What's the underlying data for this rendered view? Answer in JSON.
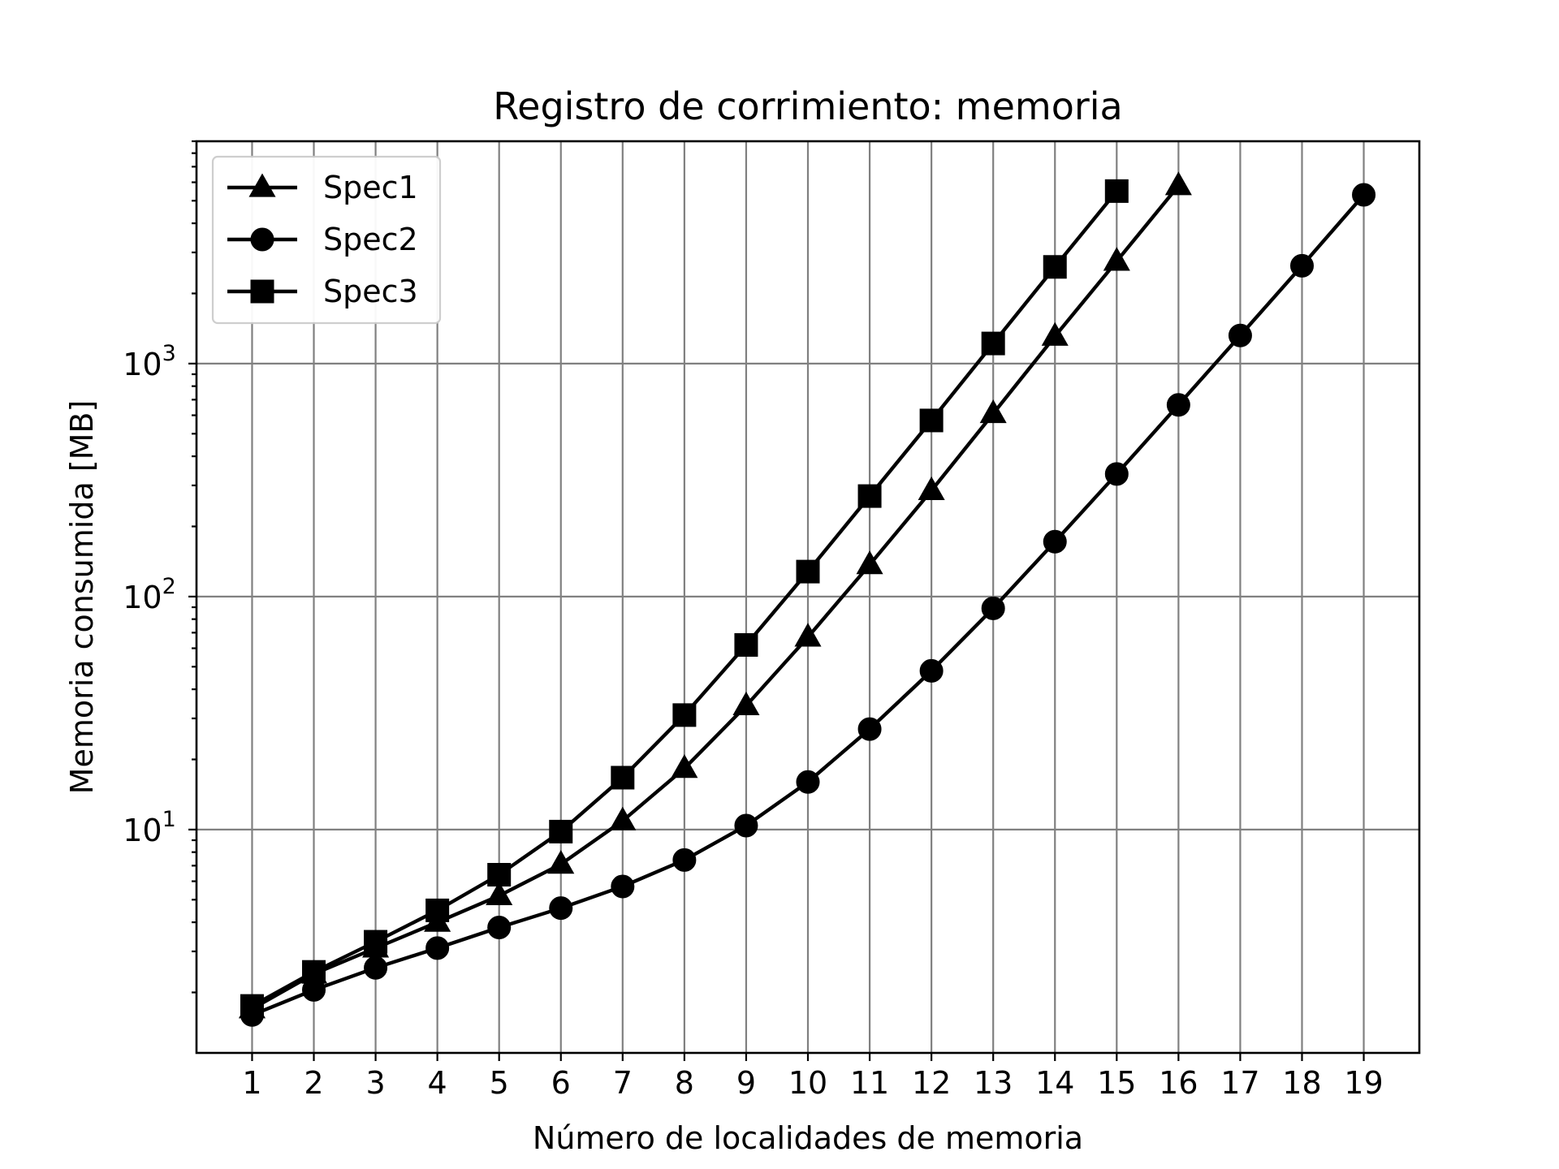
{
  "chart_data": {
    "type": "line",
    "title": "Registro de corrimiento: memoria",
    "xlabel": "Número de localidades de memoria",
    "ylabel": "Memoria consumida [MB]",
    "yscale": "log",
    "ylim": [
      1.1,
      9000
    ],
    "xlim": [
      0.1,
      19.9
    ],
    "x_ticks": [
      1,
      2,
      3,
      4,
      5,
      6,
      7,
      8,
      9,
      10,
      11,
      12,
      13,
      14,
      15,
      16,
      17,
      18,
      19
    ],
    "x_tick_labels": [
      "1",
      "2",
      "3",
      "4",
      "5",
      "6",
      "7",
      "8",
      "9",
      "10",
      "11",
      "12",
      "13",
      "14",
      "15",
      "16",
      "17",
      "18",
      "19"
    ],
    "y_major_ticks": [
      {
        "value": 10,
        "base": "10",
        "exp": "1"
      },
      {
        "value": 100,
        "base": "10",
        "exp": "2"
      },
      {
        "value": 1000,
        "base": "10",
        "exp": "3"
      }
    ],
    "grid": true,
    "legend_position": "top-left",
    "series": [
      {
        "name": "Spec1",
        "marker": "triangle",
        "color": "#000000",
        "x": [
          1,
          2,
          3,
          4,
          5,
          6,
          7,
          8,
          9,
          10,
          11,
          12,
          13,
          14,
          15,
          16
        ],
        "values": [
          1.7,
          2.4,
          3.1,
          4.0,
          5.2,
          7.1,
          10.9,
          18.3,
          34,
          67,
          137,
          285,
          610,
          1310,
          2750,
          5800
        ]
      },
      {
        "name": "Spec2",
        "marker": "circle",
        "color": "#000000",
        "x": [
          1,
          2,
          3,
          4,
          5,
          6,
          7,
          8,
          9,
          10,
          11,
          12,
          13,
          14,
          15,
          16,
          17,
          18,
          19
        ],
        "values": [
          1.6,
          2.05,
          2.55,
          3.1,
          3.8,
          4.6,
          5.7,
          7.4,
          10.4,
          16,
          27,
          48,
          89,
          172,
          336,
          665,
          1320,
          2630,
          5300
        ]
      },
      {
        "name": "Spec3",
        "marker": "square",
        "color": "#000000",
        "x": [
          1,
          2,
          3,
          4,
          5,
          6,
          7,
          8,
          9,
          10,
          11,
          12,
          13,
          14,
          15
        ],
        "values": [
          1.75,
          2.45,
          3.3,
          4.5,
          6.4,
          9.8,
          16.7,
          31,
          62,
          128,
          270,
          570,
          1220,
          2600,
          5500
        ]
      }
    ]
  }
}
